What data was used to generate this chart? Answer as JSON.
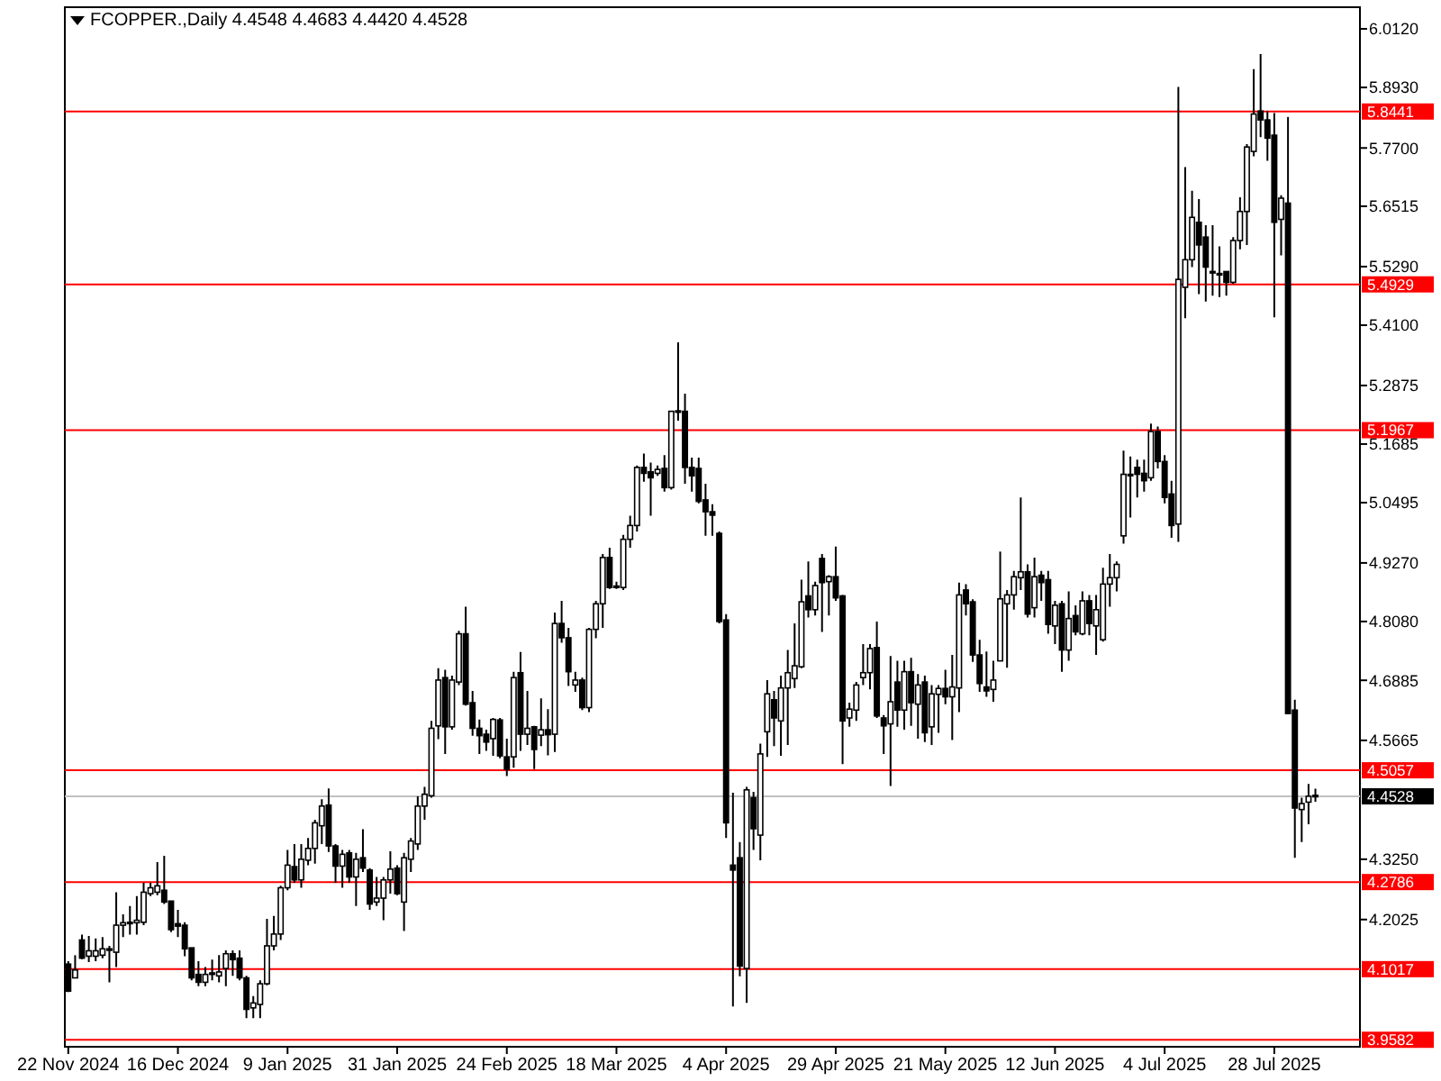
{
  "chart_data": {
    "type": "candlestick",
    "title": "FCOPPER.,Daily  4.4548 4.4683 4.4420 4.4528",
    "color": "#000000",
    "categories": [
      "22 Nov 2024",
      null,
      null,
      null,
      null,
      null,
      null,
      null,
      null,
      null,
      null,
      null,
      null,
      null,
      null,
      null,
      "16 Dec 2024",
      null,
      null,
      null,
      null,
      null,
      null,
      null,
      null,
      null,
      null,
      null,
      null,
      null,
      null,
      null,
      "9 Jan 2025",
      null,
      null,
      null,
      null,
      null,
      null,
      null,
      null,
      null,
      null,
      null,
      null,
      null,
      null,
      null,
      "31 Jan 2025",
      null,
      null,
      null,
      null,
      null,
      null,
      null,
      null,
      null,
      null,
      null,
      null,
      null,
      null,
      null,
      "24 Feb 2025",
      null,
      null,
      null,
      null,
      null,
      null,
      null,
      null,
      null,
      null,
      null,
      null,
      null,
      null,
      null,
      "18 Mar 2025",
      null,
      null,
      null,
      null,
      null,
      null,
      null,
      null,
      null,
      null,
      null,
      null,
      null,
      null,
      null,
      "4 Apr 2025",
      null,
      null,
      null,
      null,
      null,
      null,
      null,
      null,
      null,
      null,
      null,
      null,
      null,
      null,
      null,
      "29 Apr 2025",
      null,
      null,
      null,
      null,
      null,
      null,
      null,
      null,
      null,
      null,
      null,
      null,
      null,
      null,
      null,
      "21 May 2025",
      null,
      null,
      null,
      null,
      null,
      null,
      null,
      null,
      null,
      null,
      null,
      null,
      null,
      null,
      null,
      "12 Jun 2025",
      null,
      null,
      null,
      null,
      null,
      null,
      null,
      null,
      null,
      null,
      null,
      null,
      null,
      null,
      null,
      "4 Jul 2025",
      null,
      null,
      null,
      null,
      null,
      null,
      null,
      null,
      null,
      null,
      null,
      null,
      null,
      null,
      null,
      "28 Jul 2025",
      null,
      null,
      null,
      null,
      null,
      null
    ],
    "ohlc": [
      [
        4.112,
        4.118,
        4.055,
        4.057
      ],
      [
        4.084,
        4.13,
        4.084,
        4.1
      ],
      [
        4.161,
        4.172,
        4.122,
        4.124
      ],
      [
        4.128,
        4.169,
        4.116,
        4.139
      ],
      [
        4.128,
        4.164,
        4.118,
        4.139
      ],
      [
        4.13,
        4.167,
        4.124,
        4.143
      ],
      [
        4.143,
        4.149,
        4.075,
        4.14
      ],
      [
        4.136,
        4.258,
        4.106,
        4.191
      ],
      [
        4.191,
        4.213,
        4.167,
        4.196
      ],
      [
        4.196,
        4.23,
        4.172,
        4.197
      ],
      [
        4.196,
        4.25,
        4.172,
        4.201
      ],
      [
        4.197,
        4.277,
        4.191,
        4.258
      ],
      [
        4.255,
        4.277,
        4.25,
        4.267
      ],
      [
        4.258,
        4.319,
        4.252,
        4.271
      ],
      [
        4.262,
        4.332,
        4.234,
        4.238
      ],
      [
        4.24,
        4.24,
        4.177,
        4.182
      ],
      [
        4.194,
        4.222,
        4.167,
        4.189
      ],
      [
        4.191,
        4.197,
        4.128,
        4.143
      ],
      [
        4.145,
        4.145,
        4.079,
        4.084
      ],
      [
        4.091,
        4.118,
        4.067,
        4.075
      ],
      [
        4.075,
        4.106,
        4.067,
        4.091
      ],
      [
        4.094,
        4.121,
        4.079,
        4.093
      ],
      [
        4.088,
        4.13,
        4.075,
        4.096
      ],
      [
        4.103,
        4.14,
        4.067,
        4.133
      ],
      [
        4.133,
        4.14,
        4.088,
        4.121
      ],
      [
        4.124,
        4.14,
        4.079,
        4.084
      ],
      [
        4.084,
        4.088,
        4.002,
        4.02
      ],
      [
        4.023,
        4.047,
        4.002,
        4.033
      ],
      [
        4.03,
        4.079,
        4.002,
        4.072
      ],
      [
        4.072,
        4.204,
        4.069,
        4.149
      ],
      [
        4.149,
        4.21,
        4.14,
        4.173
      ],
      [
        4.173,
        4.271,
        4.161,
        4.267
      ],
      [
        4.267,
        4.344,
        4.262,
        4.313
      ],
      [
        4.31,
        4.356,
        4.277,
        4.283
      ],
      [
        4.283,
        4.356,
        4.267,
        4.325
      ],
      [
        4.323,
        4.368,
        4.313,
        4.347
      ],
      [
        4.347,
        4.405,
        4.316,
        4.399
      ],
      [
        4.393,
        4.447,
        4.356,
        4.433
      ],
      [
        4.435,
        4.469,
        4.34,
        4.352
      ],
      [
        4.352,
        4.356,
        4.277,
        4.311
      ],
      [
        4.311,
        4.344,
        4.267,
        4.335
      ],
      [
        4.338,
        4.344,
        4.277,
        4.289
      ],
      [
        4.289,
        4.338,
        4.23,
        4.325
      ],
      [
        4.328,
        4.386,
        4.299,
        4.307
      ],
      [
        4.303,
        4.307,
        4.222,
        4.234
      ],
      [
        4.238,
        4.289,
        4.23,
        4.246
      ],
      [
        4.246,
        4.289,
        4.201,
        4.283
      ],
      [
        4.283,
        4.341,
        4.255,
        4.305
      ],
      [
        4.307,
        4.313,
        4.252,
        4.255
      ],
      [
        4.238,
        4.338,
        4.179,
        4.328
      ],
      [
        4.325,
        4.368,
        4.299,
        4.362
      ],
      [
        4.356,
        4.453,
        4.344,
        4.433
      ],
      [
        4.433,
        4.472,
        4.405,
        4.457
      ],
      [
        4.454,
        4.606,
        4.45,
        4.591
      ],
      [
        4.596,
        4.713,
        4.569,
        4.689
      ],
      [
        4.694,
        4.71,
        4.539,
        4.594
      ],
      [
        4.594,
        4.698,
        4.588,
        4.689
      ],
      [
        4.685,
        4.789,
        4.679,
        4.783
      ],
      [
        4.783,
        4.838,
        4.637,
        4.64
      ],
      [
        4.643,
        4.667,
        4.576,
        4.591
      ],
      [
        4.591,
        4.609,
        4.539,
        4.576
      ],
      [
        4.579,
        4.588,
        4.545,
        4.563
      ],
      [
        4.57,
        4.612,
        4.535,
        4.609
      ],
      [
        4.608,
        4.612,
        4.53,
        4.535
      ],
      [
        4.533,
        4.57,
        4.494,
        4.508
      ],
      [
        4.533,
        4.706,
        4.511,
        4.694
      ],
      [
        4.704,
        4.746,
        4.545,
        4.579
      ],
      [
        4.579,
        4.667,
        4.557,
        4.591
      ],
      [
        4.594,
        4.596,
        4.508,
        4.548
      ],
      [
        4.577,
        4.652,
        4.555,
        4.588
      ],
      [
        4.588,
        4.63,
        4.536,
        4.578
      ],
      [
        4.579,
        4.826,
        4.543,
        4.804
      ],
      [
        4.804,
        4.85,
        4.765,
        4.775
      ],
      [
        4.775,
        4.795,
        4.677,
        4.706
      ],
      [
        4.679,
        4.706,
        4.665,
        4.689
      ],
      [
        4.689,
        4.694,
        4.628,
        4.633
      ],
      [
        4.633,
        4.795,
        4.624,
        4.792
      ],
      [
        4.792,
        4.85,
        4.774,
        4.844
      ],
      [
        4.844,
        4.945,
        4.795,
        4.938
      ],
      [
        4.938,
        4.958,
        4.874,
        4.877
      ],
      [
        4.88,
        4.889,
        4.874,
        4.88
      ],
      [
        4.877,
        4.984,
        4.872,
        4.975
      ],
      [
        4.975,
        5.023,
        4.958,
        5.003
      ],
      [
        5.003,
        5.125,
        4.991,
        5.121
      ],
      [
        5.121,
        5.149,
        5.092,
        5.109
      ],
      [
        5.112,
        5.131,
        5.023,
        5.1
      ],
      [
        5.109,
        5.125,
        5.104,
        5.117
      ],
      [
        5.119,
        5.146,
        5.072,
        5.08
      ],
      [
        5.08,
        5.235,
        5.076,
        5.235
      ],
      [
        5.235,
        5.375,
        5.216,
        5.236
      ],
      [
        5.235,
        5.271,
        5.088,
        5.121
      ],
      [
        5.121,
        5.141,
        5.072,
        5.104
      ],
      [
        5.119,
        5.141,
        5.048,
        5.052
      ],
      [
        5.055,
        5.088,
        4.982,
        5.031
      ],
      [
        5.031,
        5.046,
        4.982,
        5.024
      ],
      [
        4.987,
        4.991,
        4.804,
        4.808
      ],
      [
        4.811,
        4.823,
        4.368,
        4.399
      ],
      [
        4.313,
        4.46,
        4.026,
        4.303
      ],
      [
        4.328,
        4.36,
        4.087,
        4.108
      ],
      [
        4.103,
        4.472,
        4.033,
        4.466
      ],
      [
        4.45,
        4.462,
        4.344,
        4.387
      ],
      [
        4.374,
        4.56,
        4.323,
        4.539
      ],
      [
        4.584,
        4.689,
        4.533,
        4.661
      ],
      [
        4.649,
        4.667,
        4.555,
        4.612
      ],
      [
        4.606,
        4.698,
        4.535,
        4.673
      ],
      [
        4.673,
        4.75,
        4.557,
        4.704
      ],
      [
        4.692,
        4.804,
        4.673,
        4.718
      ],
      [
        4.716,
        4.893,
        4.713,
        4.848
      ],
      [
        4.86,
        4.93,
        4.816,
        4.832
      ],
      [
        4.832,
        4.889,
        4.82,
        4.881
      ],
      [
        4.936,
        4.945,
        4.787,
        4.887
      ],
      [
        4.889,
        4.902,
        4.82,
        4.899
      ],
      [
        4.899,
        4.96,
        4.85,
        4.856
      ],
      [
        4.86,
        4.862,
        4.518,
        4.606
      ],
      [
        4.612,
        4.643,
        4.594,
        4.63
      ],
      [
        4.628,
        4.685,
        4.606,
        4.679
      ],
      [
        4.694,
        4.762,
        4.679,
        4.704
      ],
      [
        4.704,
        4.762,
        4.67,
        4.753
      ],
      [
        4.755,
        4.808,
        4.612,
        4.616
      ],
      [
        4.612,
        4.618,
        4.539,
        4.596
      ],
      [
        4.6,
        4.738,
        4.474,
        4.645
      ],
      [
        4.685,
        4.728,
        4.594,
        4.628
      ],
      [
        4.628,
        4.728,
        4.588,
        4.706
      ],
      [
        4.706,
        4.734,
        4.596,
        4.643
      ],
      [
        4.64,
        4.701,
        4.57,
        4.679
      ],
      [
        4.685,
        4.698,
        4.563,
        4.582
      ],
      [
        4.594,
        4.679,
        4.557,
        4.661
      ],
      [
        4.66,
        4.679,
        4.582,
        4.672
      ],
      [
        4.672,
        4.71,
        4.64,
        4.655
      ],
      [
        4.655,
        4.74,
        4.567,
        4.675
      ],
      [
        4.673,
        4.887,
        4.624,
        4.862
      ],
      [
        4.872,
        4.884,
        4.82,
        4.844
      ],
      [
        4.848,
        4.853,
        4.726,
        4.74
      ],
      [
        4.74,
        4.771,
        4.665,
        4.682
      ],
      [
        4.675,
        4.747,
        4.655,
        4.667
      ],
      [
        4.67,
        4.728,
        4.645,
        4.689
      ],
      [
        4.728,
        4.95,
        4.728,
        4.854
      ],
      [
        4.844,
        4.872,
        4.714,
        4.862
      ],
      [
        4.862,
        4.911,
        4.832,
        4.899
      ],
      [
        4.897,
        5.06,
        4.872,
        4.909
      ],
      [
        4.909,
        4.924,
        4.816,
        4.823
      ],
      [
        4.836,
        4.938,
        4.816,
        4.899
      ],
      [
        4.902,
        4.911,
        4.85,
        4.887
      ],
      [
        4.893,
        4.911,
        4.783,
        4.802
      ],
      [
        4.799,
        4.85,
        4.762,
        4.841
      ],
      [
        4.844,
        4.85,
        4.706,
        4.75
      ],
      [
        4.75,
        4.869,
        4.728,
        4.814
      ],
      [
        4.82,
        4.841,
        4.78,
        4.787
      ],
      [
        4.783,
        4.869,
        4.78,
        4.85
      ],
      [
        4.85,
        4.862,
        4.78,
        4.804
      ],
      [
        4.799,
        4.862,
        4.74,
        4.832
      ],
      [
        4.771,
        4.917,
        4.767,
        4.884
      ],
      [
        4.884,
        4.945,
        4.838,
        4.897
      ],
      [
        4.897,
        4.93,
        4.869,
        4.924
      ],
      [
        4.982,
        5.155,
        4.966,
        5.107
      ],
      [
        5.107,
        5.143,
        5.019,
        5.106
      ],
      [
        5.121,
        5.137,
        5.06,
        5.107
      ],
      [
        5.109,
        5.137,
        5.072,
        5.094
      ],
      [
        5.1,
        5.21,
        5.094,
        5.194
      ],
      [
        5.194,
        5.204,
        5.119,
        5.133
      ],
      [
        5.133,
        5.146,
        5.048,
        5.06
      ],
      [
        5.067,
        5.094,
        4.978,
        5.003
      ],
      [
        5.006,
        5.894,
        4.97,
        5.503
      ],
      [
        5.487,
        5.731,
        5.424,
        5.543
      ],
      [
        5.543,
        5.683,
        5.528,
        5.629
      ],
      [
        5.619,
        5.666,
        5.473,
        5.573
      ],
      [
        5.589,
        5.613,
        5.458,
        5.528
      ],
      [
        5.519,
        5.613,
        5.47,
        5.518
      ],
      [
        5.515,
        5.57,
        5.467,
        5.515
      ],
      [
        5.519,
        5.519,
        5.47,
        5.497
      ],
      [
        5.497,
        5.589,
        5.494,
        5.582
      ],
      [
        5.582,
        5.67,
        5.564,
        5.641
      ],
      [
        5.641,
        5.778,
        5.573,
        5.772
      ],
      [
        5.763,
        5.93,
        5.753,
        5.839
      ],
      [
        5.845,
        5.961,
        5.792,
        5.827
      ],
      [
        5.827,
        5.845,
        5.744,
        5.79
      ],
      [
        5.796,
        5.841,
        5.426,
        5.619
      ],
      [
        5.625,
        5.674,
        5.552,
        5.668
      ],
      [
        5.658,
        5.833,
        4.621,
        4.621
      ],
      [
        4.628,
        4.649,
        4.328,
        4.429
      ],
      [
        4.426,
        4.45,
        4.36,
        4.438
      ],
      [
        4.441,
        4.478,
        4.396,
        4.453
      ],
      [
        4.4548,
        4.4683,
        4.442,
        4.4528
      ]
    ],
    "ylim": [
      3.944,
      6.056
    ],
    "yticks": [
      {
        "value": 6.012,
        "label": "6.0120"
      },
      {
        "value": 5.893,
        "label": "5.8930"
      },
      {
        "value": 5.77,
        "label": "5.7700"
      },
      5.6515,
      {
        "value": 5.529,
        "label": "5.5290"
      },
      {
        "value": 5.41,
        "label": "5.4100"
      },
      5.2875,
      5.1685,
      5.0495,
      {
        "value": 4.927,
        "label": "4.9270"
      },
      {
        "value": 4.808,
        "label": "4.8080"
      },
      4.6885,
      4.5665,
      {
        "value": 4.325,
        "label": "4.3250"
      },
      4.2025
    ],
    "ref_lines": [
      {
        "axis": "y",
        "value": 5.8441,
        "label": "5.8441",
        "color": "#ff0000"
      },
      {
        "axis": "y",
        "value": 5.4929,
        "label": "5.4929",
        "color": "#ff0000"
      },
      {
        "axis": "y",
        "value": 5.1967,
        "label": "5.1967",
        "color": "#ff0000"
      },
      {
        "axis": "y",
        "value": 4.5057,
        "label": "4.5057",
        "color": "#ff0000"
      },
      {
        "axis": "y",
        "value": 4.4528,
        "label": "4.4528",
        "color": "#c0c0c0"
      },
      {
        "axis": "y",
        "value": 4.2786,
        "label": "4.2786",
        "color": "#ff0000"
      },
      {
        "axis": "y",
        "value": 4.1017,
        "label": "4.1017",
        "color": "#ff0000"
      },
      {
        "axis": "y",
        "value": 3.9582,
        "label": "3.9582",
        "color": "#ff0000"
      }
    ]
  }
}
